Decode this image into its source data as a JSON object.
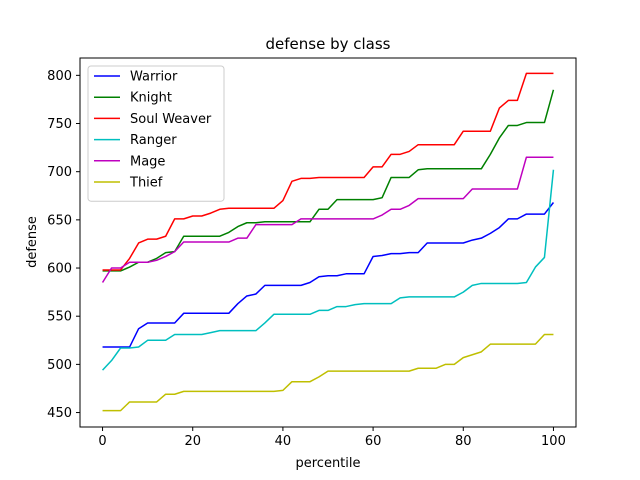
{
  "chart_data": {
    "type": "line",
    "title": "defense by class",
    "xlabel": "percentile",
    "ylabel": "defense",
    "xlim": [
      -5,
      105
    ],
    "ylim": [
      435,
      818
    ],
    "xticks": [
      0,
      20,
      40,
      60,
      80,
      100
    ],
    "yticks": [
      450,
      500,
      550,
      600,
      650,
      700,
      750,
      800
    ],
    "grid": false,
    "legend_position": "top-left",
    "x": [
      0,
      2,
      4,
      6,
      8,
      10,
      12,
      14,
      16,
      18,
      20,
      22,
      24,
      26,
      28,
      30,
      32,
      34,
      36,
      38,
      40,
      42,
      44,
      46,
      48,
      50,
      52,
      54,
      56,
      58,
      60,
      62,
      64,
      66,
      68,
      70,
      72,
      74,
      76,
      78,
      80,
      82,
      84,
      86,
      88,
      90,
      92,
      94,
      96,
      98,
      100
    ],
    "series": [
      {
        "name": "Warrior",
        "color": "#0000ff",
        "values": [
          518,
          518,
          518,
          518,
          537,
          543,
          543,
          543,
          543,
          553,
          553,
          553,
          553,
          553,
          553,
          563,
          571,
          573,
          582,
          582,
          582,
          582,
          582,
          585,
          591,
          592,
          592,
          594,
          594,
          594,
          612,
          613,
          615,
          615,
          616,
          616,
          626,
          626,
          626,
          626,
          626,
          629,
          631,
          636,
          642,
          651,
          651,
          656,
          656,
          656,
          668
        ]
      },
      {
        "name": "Knight",
        "color": "#008000",
        "values": [
          597,
          597,
          597,
          601,
          606,
          606,
          610,
          616,
          617,
          633,
          633,
          633,
          633,
          633,
          637,
          643,
          647,
          647,
          648,
          648,
          648,
          648,
          648,
          648,
          661,
          661,
          671,
          671,
          671,
          671,
          671,
          673,
          694,
          694,
          694,
          702,
          703,
          703,
          703,
          703,
          703,
          703,
          703,
          718,
          735,
          748,
          748,
          751,
          751,
          751,
          785
        ]
      },
      {
        "name": "Soul Weaver",
        "color": "#ff0000",
        "values": [
          598,
          598,
          598,
          610,
          626,
          630,
          630,
          633,
          651,
          651,
          654,
          654,
          657,
          661,
          662,
          662,
          662,
          662,
          662,
          662,
          670,
          690,
          693,
          693,
          694,
          694,
          694,
          694,
          694,
          694,
          705,
          705,
          718,
          718,
          721,
          728,
          728,
          728,
          728,
          728,
          742,
          742,
          742,
          742,
          766,
          774,
          774,
          802,
          802,
          802,
          802
        ]
      },
      {
        "name": "Ranger",
        "color": "#00bfbf",
        "values": [
          494,
          504,
          517,
          517,
          518,
          525,
          525,
          525,
          531,
          531,
          531,
          531,
          533,
          535,
          535,
          535,
          535,
          535,
          543,
          552,
          552,
          552,
          552,
          552,
          556,
          556,
          560,
          560,
          562,
          563,
          563,
          563,
          563,
          569,
          570,
          570,
          570,
          570,
          570,
          570,
          575,
          582,
          584,
          584,
          584,
          584,
          584,
          585,
          601,
          611,
          702
        ]
      },
      {
        "name": "Mage",
        "color": "#bf00bf",
        "values": [
          585,
          600,
          600,
          606,
          606,
          606,
          608,
          612,
          617,
          627,
          627,
          627,
          627,
          627,
          627,
          631,
          631,
          645,
          645,
          645,
          645,
          645,
          651,
          651,
          651,
          651,
          651,
          651,
          651,
          651,
          651,
          655,
          661,
          661,
          665,
          672,
          672,
          672,
          672,
          672,
          672,
          682,
          682,
          682,
          682,
          682,
          682,
          715,
          715,
          715,
          715
        ]
      },
      {
        "name": "Thief",
        "color": "#bfbf00",
        "values": [
          452,
          452,
          452,
          461,
          461,
          461,
          461,
          469,
          469,
          472,
          472,
          472,
          472,
          472,
          472,
          472,
          472,
          472,
          472,
          472,
          473,
          482,
          482,
          482,
          487,
          493,
          493,
          493,
          493,
          493,
          493,
          493,
          493,
          493,
          493,
          496,
          496,
          496,
          500,
          500,
          507,
          510,
          513,
          521,
          521,
          521,
          521,
          521,
          521,
          531,
          531
        ]
      }
    ]
  }
}
